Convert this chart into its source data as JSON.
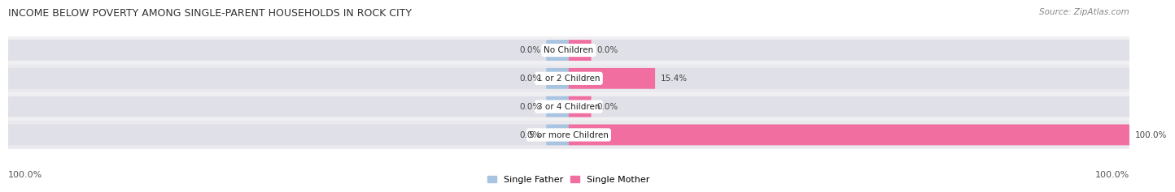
{
  "title": "INCOME BELOW POVERTY AMONG SINGLE-PARENT HOUSEHOLDS IN ROCK CITY",
  "source": "Source: ZipAtlas.com",
  "categories": [
    "No Children",
    "1 or 2 Children",
    "3 or 4 Children",
    "5 or more Children"
  ],
  "single_father": [
    0.0,
    0.0,
    0.0,
    0.0
  ],
  "single_mother": [
    0.0,
    15.4,
    0.0,
    100.0
  ],
  "father_color": "#a8c4e0",
  "mother_color": "#f06fa0",
  "bar_bg_color": "#e8e8e8",
  "bar_bg_color2": "#f5f5f5",
  "figsize": [
    14.06,
    2.32
  ],
  "dpi": 100,
  "father_label": "Single Father",
  "mother_label": "Single Mother",
  "bottom_left_label": "100.0%",
  "bottom_right_label": "100.0%",
  "title_fontsize": 9,
  "source_fontsize": 7.5,
  "label_fontsize": 7.5,
  "cat_fontsize": 7.5
}
